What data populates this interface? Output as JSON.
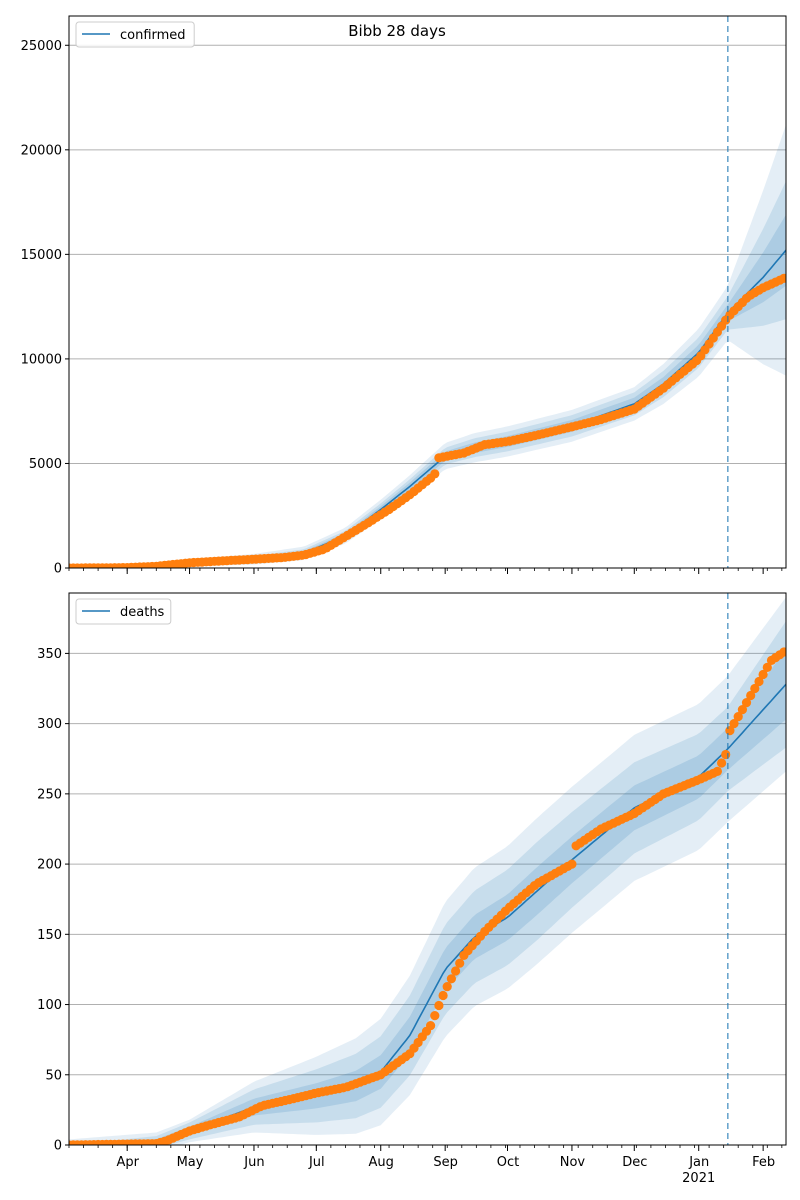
{
  "figure": {
    "title": "Bibb 28 days"
  },
  "colors": {
    "line": "#1f77b4",
    "points": "#ff7f0e",
    "band": "#1f77b4",
    "grid": "#b0b0b0",
    "axis": "#000000"
  },
  "chart_data": [
    {
      "type": "line",
      "legend": {
        "label": "confirmed",
        "position": "top-left"
      },
      "x_axis": {
        "start": "2020-03-04",
        "end": "2021-02-12",
        "tick_labels": [
          "Apr",
          "May",
          "Jun",
          "Jul",
          "Aug",
          "Sep",
          "Oct",
          "Nov",
          "Dec",
          "Jan",
          "Feb"
        ],
        "year_label": "2021"
      },
      "ylim": [
        0,
        26400
      ],
      "yticks": [
        0,
        5000,
        10000,
        15000,
        20000,
        25000
      ],
      "grid": "horizontal",
      "forecast_start": "2021-01-15",
      "model_line": [
        [
          "2020-03-04",
          0
        ],
        [
          "2020-04-01",
          20
        ],
        [
          "2020-05-01",
          250
        ],
        [
          "2020-06-01",
          420
        ],
        [
          "2020-06-25",
          700
        ],
        [
          "2020-07-15",
          1550
        ],
        [
          "2020-08-01",
          2800
        ],
        [
          "2020-08-15",
          3900
        ],
        [
          "2020-09-01",
          5350
        ],
        [
          "2020-09-15",
          5750
        ],
        [
          "2020-10-01",
          6050
        ],
        [
          "2020-11-01",
          6800
        ],
        [
          "2020-12-01",
          7850
        ],
        [
          "2020-12-15",
          8800
        ],
        [
          "2021-01-01",
          10300
        ],
        [
          "2021-01-15",
          12200
        ],
        [
          "2021-02-01",
          13900
        ],
        [
          "2021-02-12",
          15200
        ]
      ],
      "band_inner_halfwidth": [
        [
          "2020-03-04",
          0
        ],
        [
          "2020-07-15",
          120
        ],
        [
          "2020-09-15",
          250
        ],
        [
          "2020-12-01",
          300
        ],
        [
          "2021-01-15",
          400
        ],
        [
          "2021-02-12",
          1700
        ]
      ],
      "band_middle_halfwidth": [
        [
          "2020-03-04",
          0
        ],
        [
          "2020-07-15",
          230
        ],
        [
          "2020-09-15",
          450
        ],
        [
          "2020-12-01",
          550
        ],
        [
          "2021-01-15",
          800
        ],
        [
          "2021-02-12",
          3300
        ]
      ],
      "band_outer_halfwidth": [
        [
          "2020-03-04",
          0
        ],
        [
          "2020-07-15",
          380
        ],
        [
          "2020-09-15",
          700
        ],
        [
          "2020-12-01",
          800
        ],
        [
          "2021-01-15",
          1300
        ],
        [
          "2021-02-12",
          6000
        ]
      ],
      "observed": [
        [
          "2020-03-04",
          0
        ],
        [
          "2020-03-20",
          5
        ],
        [
          "2020-04-01",
          20
        ],
        [
          "2020-04-15",
          80
        ],
        [
          "2020-05-01",
          250
        ],
        [
          "2020-05-15",
          330
        ],
        [
          "2020-06-01",
          420
        ],
        [
          "2020-06-15",
          500
        ],
        [
          "2020-06-25",
          620
        ],
        [
          "2020-07-05",
          900
        ],
        [
          "2020-07-15",
          1500
        ],
        [
          "2020-07-25",
          2100
        ],
        [
          "2020-08-05",
          2800
        ],
        [
          "2020-08-15",
          3500
        ],
        [
          "2020-08-25",
          4300
        ],
        [
          "2020-08-27",
          4500
        ],
        [
          "2020-08-28",
          5250
        ],
        [
          "2020-09-10",
          5500
        ],
        [
          "2020-09-20",
          5900
        ],
        [
          "2020-10-01",
          6050
        ],
        [
          "2020-10-15",
          6350
        ],
        [
          "2020-11-01",
          6750
        ],
        [
          "2020-11-15",
          7100
        ],
        [
          "2020-12-01",
          7600
        ],
        [
          "2020-12-15",
          8600
        ],
        [
          "2021-01-01",
          10000
        ],
        [
          "2021-01-15",
          12000
        ],
        [
          "2021-01-25",
          13000
        ],
        [
          "2021-02-01",
          13400
        ],
        [
          "2021-02-12",
          13900
        ]
      ]
    },
    {
      "type": "line",
      "legend": {
        "label": "deaths",
        "position": "top-left"
      },
      "x_axis": {
        "start": "2020-03-04",
        "end": "2021-02-12",
        "tick_labels": [
          "Apr",
          "May",
          "Jun",
          "Jul",
          "Aug",
          "Sep",
          "Oct",
          "Nov",
          "Dec",
          "Jan",
          "Feb"
        ],
        "year_label": "2021"
      },
      "ylim": [
        0,
        393
      ],
      "yticks": [
        0,
        50,
        100,
        150,
        200,
        250,
        300,
        350
      ],
      "grid": "horizontal",
      "forecast_start": "2021-01-15",
      "model_line": [
        [
          "2020-03-04",
          0
        ],
        [
          "2020-04-15",
          2
        ],
        [
          "2020-05-01",
          10
        ],
        [
          "2020-06-01",
          27
        ],
        [
          "2020-07-01",
          35
        ],
        [
          "2020-07-20",
          42
        ],
        [
          "2020-08-01",
          52
        ],
        [
          "2020-08-15",
          78
        ],
        [
          "2020-09-01",
          125
        ],
        [
          "2020-09-15",
          148
        ],
        [
          "2020-10-01",
          162
        ],
        [
          "2020-11-01",
          203
        ],
        [
          "2020-12-01",
          240
        ],
        [
          "2021-01-01",
          262
        ],
        [
          "2021-01-15",
          282
        ],
        [
          "2021-02-12",
          328
        ]
      ],
      "band_inner_halfwidth": [
        [
          "2020-03-04",
          0
        ],
        [
          "2020-05-01",
          3
        ],
        [
          "2020-09-01",
          15
        ],
        [
          "2020-10-15",
          17
        ],
        [
          "2021-01-15",
          15
        ],
        [
          "2021-02-12",
          25
        ]
      ],
      "band_middle_halfwidth": [
        [
          "2020-03-04",
          0
        ],
        [
          "2020-05-01",
          6
        ],
        [
          "2020-09-01",
          32
        ],
        [
          "2020-10-15",
          35
        ],
        [
          "2021-01-15",
          30
        ],
        [
          "2021-02-12",
          45
        ]
      ],
      "band_outer_halfwidth": [
        [
          "2020-03-04",
          4
        ],
        [
          "2020-05-01",
          8
        ],
        [
          "2020-09-01",
          48
        ],
        [
          "2020-10-15",
          52
        ],
        [
          "2021-01-15",
          52
        ],
        [
          "2021-02-12",
          62
        ]
      ],
      "observed": [
        [
          "2020-03-04",
          0
        ],
        [
          "2020-04-15",
          1
        ],
        [
          "2020-04-20",
          3
        ],
        [
          "2020-05-01",
          10
        ],
        [
          "2020-05-10",
          14
        ],
        [
          "2020-05-25",
          20
        ],
        [
          "2020-06-05",
          28
        ],
        [
          "2020-06-20",
          33
        ],
        [
          "2020-07-01",
          37
        ],
        [
          "2020-07-15",
          41
        ],
        [
          "2020-08-01",
          50
        ],
        [
          "2020-08-15",
          65
        ],
        [
          "2020-08-25",
          85
        ],
        [
          "2020-09-01",
          110
        ],
        [
          "2020-09-10",
          135
        ],
        [
          "2020-09-20",
          152
        ],
        [
          "2020-10-01",
          168
        ],
        [
          "2020-10-15",
          186
        ],
        [
          "2020-11-01",
          200
        ],
        [
          "2020-11-02",
          212
        ],
        [
          "2020-11-15",
          225
        ],
        [
          "2020-12-01",
          236
        ],
        [
          "2020-12-15",
          250
        ],
        [
          "2021-01-01",
          260
        ],
        [
          "2021-01-10",
          266
        ],
        [
          "2021-01-15",
          281
        ],
        [
          "2021-01-16",
          295
        ],
        [
          "2021-01-22",
          310
        ],
        [
          "2021-01-30",
          330
        ],
        [
          "2021-02-05",
          345
        ],
        [
          "2021-02-12",
          352
        ]
      ]
    }
  ]
}
